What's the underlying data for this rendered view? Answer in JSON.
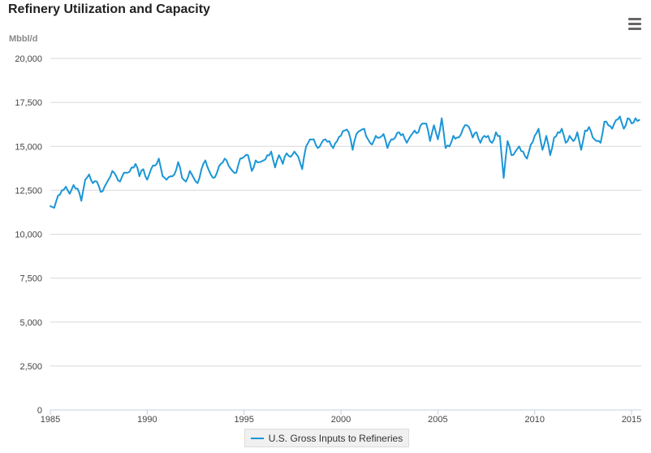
{
  "chart_data": {
    "type": "line",
    "title": "Refinery Utilization and Capacity",
    "ylabel": "Mbbl/d",
    "xlabel": "",
    "ylim": [
      0,
      20000
    ],
    "xlim": [
      1985,
      2015.5
    ],
    "y_ticks": [
      "0",
      "2,500",
      "5,000",
      "7,500",
      "10,000",
      "12,500",
      "15,000",
      "17,500",
      "20,000"
    ],
    "x_ticks": [
      "1985",
      "1990",
      "1995",
      "2000",
      "2005",
      "2010",
      "2015"
    ],
    "legend_position": "bottom-center",
    "series": [
      {
        "name": "U.S. Gross Inputs to Refineries",
        "color": "#1a96d6",
        "anchors_x": [
          1985.0,
          1985.2,
          1985.4,
          1985.6,
          1985.8,
          1986.0,
          1986.2,
          1986.4,
          1986.6,
          1986.8,
          1987.0,
          1987.2,
          1987.4,
          1987.6,
          1987.8,
          1988.0,
          1988.2,
          1988.4,
          1988.6,
          1988.8,
          1989.0,
          1989.2,
          1989.4,
          1989.6,
          1989.8,
          1990.0,
          1990.2,
          1990.4,
          1990.6,
          1990.8,
          1991.0,
          1991.2,
          1991.4,
          1991.6,
          1991.8,
          1992.0,
          1992.2,
          1992.4,
          1992.6,
          1992.8,
          1993.0,
          1993.2,
          1993.4,
          1993.6,
          1993.8,
          1994.0,
          1994.2,
          1994.4,
          1994.6,
          1994.8,
          1995.0,
          1995.2,
          1995.4,
          1995.6,
          1995.8,
          1996.0,
          1996.2,
          1996.4,
          1996.6,
          1996.8,
          1997.0,
          1997.2,
          1997.4,
          1997.6,
          1997.8,
          1998.0,
          1998.2,
          1998.4,
          1998.6,
          1998.8,
          1999.0,
          1999.2,
          1999.4,
          1999.6,
          1999.8,
          2000.0,
          2000.2,
          2000.4,
          2000.6,
          2000.8,
          2001.0,
          2001.2,
          2001.4,
          2001.6,
          2001.8,
          2002.0,
          2002.2,
          2002.4,
          2002.6,
          2002.8,
          2003.0,
          2003.2,
          2003.4,
          2003.6,
          2003.8,
          2004.0,
          2004.2,
          2004.4,
          2004.6,
          2004.8,
          2005.0,
          2005.2,
          2005.4,
          2005.6,
          2005.8,
          2006.0,
          2006.2,
          2006.4,
          2006.6,
          2006.8,
          2007.0,
          2007.2,
          2007.4,
          2007.6,
          2007.8,
          2008.0,
          2008.2,
          2008.4,
          2008.6,
          2008.8,
          2009.0,
          2009.2,
          2009.4,
          2009.6,
          2009.8,
          2010.0,
          2010.2,
          2010.4,
          2010.6,
          2010.8,
          2011.0,
          2011.2,
          2011.4,
          2011.6,
          2011.8,
          2012.0,
          2012.2,
          2012.4,
          2012.6,
          2012.8,
          2013.0,
          2013.2,
          2013.4,
          2013.6,
          2013.8,
          2014.0,
          2014.2,
          2014.4,
          2014.6,
          2014.8,
          2015.0,
          2015.2,
          2015.4
        ],
        "anchors_y": [
          11600,
          11500,
          12200,
          12500,
          12700,
          12300,
          12800,
          12600,
          11900,
          13100,
          13400,
          12900,
          13000,
          12400,
          12700,
          13100,
          13600,
          13300,
          13000,
          13500,
          13500,
          13800,
          14000,
          13300,
          13700,
          13100,
          13700,
          13900,
          14300,
          13300,
          13100,
          13300,
          13400,
          14100,
          13200,
          13000,
          13600,
          13200,
          12900,
          13700,
          14200,
          13600,
          13200,
          13500,
          14000,
          14300,
          13900,
          13600,
          13500,
          14300,
          14400,
          14500,
          13600,
          14200,
          14100,
          14200,
          14500,
          14700,
          13800,
          14500,
          14000,
          14600,
          14400,
          14700,
          14400,
          13700,
          15000,
          15400,
          15400,
          14900,
          15200,
          15400,
          15300,
          14900,
          15300,
          15600,
          15900,
          15800,
          14800,
          15700,
          15900,
          16000,
          15400,
          15100,
          15600,
          15500,
          15700,
          14900,
          15400,
          15500,
          15800,
          15700,
          15200,
          15600,
          15900,
          15800,
          16300,
          16300,
          15300,
          16200,
          15400,
          16600,
          14900,
          15000,
          15600,
          15500,
          15700,
          16200,
          16100,
          15500,
          15800,
          15200,
          15600,
          15600,
          15200,
          15800,
          15600,
          13200,
          15300,
          14500,
          14700,
          15000,
          14700,
          14300,
          15100,
          15600,
          16000,
          14800,
          15600,
          14500,
          15500,
          15800,
          16000,
          15200,
          15600,
          15300,
          15800,
          14800,
          15900,
          16100,
          15500,
          15300,
          15200,
          16400,
          16200,
          16000,
          16500,
          16700,
          16000,
          16600,
          16300,
          16600,
          16500
        ]
      }
    ]
  }
}
